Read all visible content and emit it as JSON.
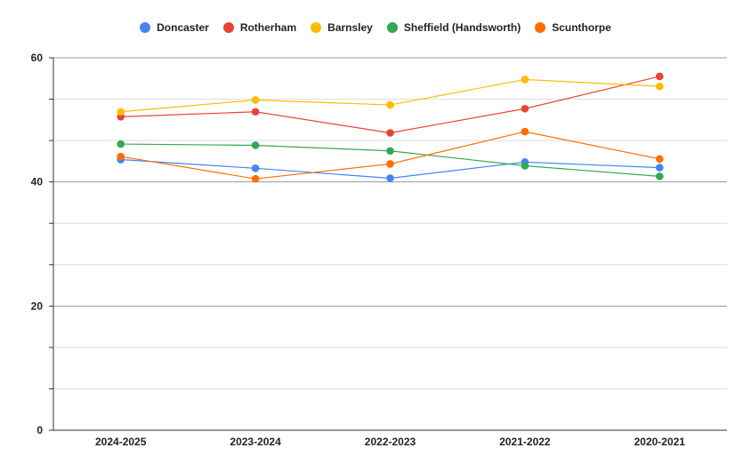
{
  "chart_data": {
    "type": "line",
    "title": "",
    "xlabel": "",
    "ylabel": "",
    "categories": [
      "2024-2025",
      "2023-2024",
      "2022-2023",
      "2021-2022",
      "2020-2021"
    ],
    "ylim": [
      0,
      60
    ],
    "yticks": [
      0,
      20,
      40,
      60
    ],
    "minor_step": 6.67,
    "grid": true,
    "legend_position": "top-center",
    "series": [
      {
        "name": "Doncaster",
        "color": "#4285F4",
        "values": [
          43.6,
          42.2,
          40.6,
          43.2,
          42.3
        ]
      },
      {
        "name": "Rotherham",
        "color": "#EA4335",
        "values": [
          50.5,
          51.3,
          47.9,
          51.8,
          57.0
        ]
      },
      {
        "name": "Barnsley",
        "color": "#FBBC04",
        "values": [
          51.3,
          53.2,
          52.4,
          56.5,
          55.4
        ]
      },
      {
        "name": "Sheffield (Handsworth)",
        "color": "#34A853",
        "values": [
          46.1,
          45.9,
          45.0,
          42.6,
          40.9
        ]
      },
      {
        "name": "Scunthorpe",
        "color": "#FF6D01",
        "values": [
          44.1,
          40.5,
          42.9,
          48.1,
          43.7
        ]
      }
    ]
  }
}
